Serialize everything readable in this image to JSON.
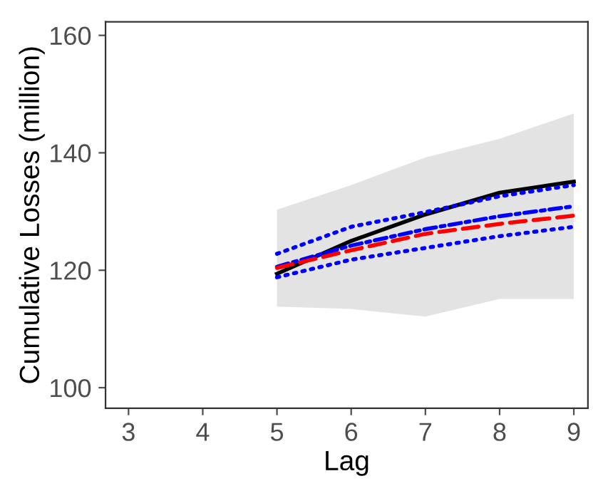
{
  "chart_data": {
    "type": "line",
    "xlabel": "Lag",
    "ylabel": "Cumulative Losses (million)",
    "x": [
      5,
      6,
      7,
      8,
      9
    ],
    "series": [
      {
        "color": "#000000",
        "line_style": "solid",
        "values": [
          119.4,
          125.0,
          129.5,
          133.2,
          135.1
        ],
        "lower": [
          113.8,
          113.4,
          112.1,
          115.1,
          115.1
        ],
        "upper": [
          130.3,
          134.5,
          139.2,
          142.4,
          146.7
        ]
      },
      {
        "color": "#0000ff",
        "line_style": "dashdot",
        "values": [
          120.6,
          124.2,
          127.0,
          129.2,
          130.9
        ]
      },
      {
        "color": "#ff0000",
        "line_style": "dashed",
        "values": [
          120.4,
          123.4,
          126.2,
          127.9,
          129.3
        ]
      },
      {
        "color": "#0000ff",
        "line_style": "dotted",
        "values": [
          122.8,
          127.4,
          129.9,
          132.6,
          134.5
        ]
      },
      {
        "color": "#0000ff",
        "line_style": "dotted",
        "values": [
          118.8,
          121.8,
          123.8,
          125.8,
          127.4
        ]
      }
    ],
    "xlim": [
      2.69,
      9.19
    ],
    "ylim": [
      96.5,
      162.3
    ],
    "xticks": [
      3,
      4,
      5,
      6,
      7,
      8,
      9
    ],
    "yticks": [
      100,
      120,
      140,
      160
    ],
    "grid": false
  }
}
